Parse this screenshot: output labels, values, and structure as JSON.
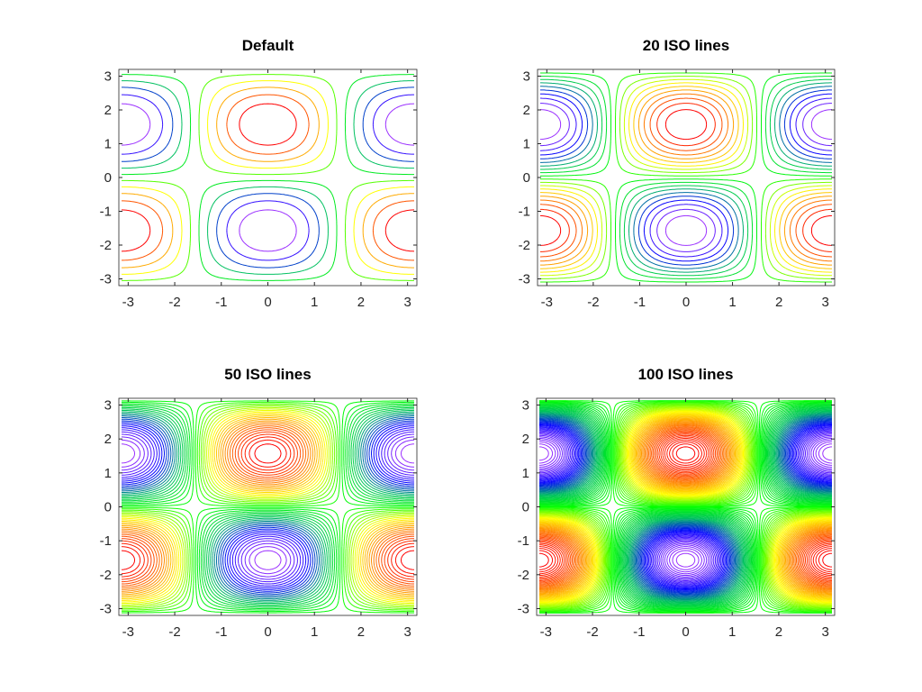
{
  "chart_data": [
    {
      "type": "contour",
      "title": "Default",
      "function": "z = cos(x) * sin(y)",
      "levels": 10,
      "xlim": [
        -3.2,
        3.2
      ],
      "ylim": [
        -3.2,
        3.2
      ],
      "xticks": [
        "-3",
        "-2",
        "-1",
        "0",
        "1",
        "2",
        "3"
      ],
      "yticks": [
        "3",
        "2",
        "1",
        "0",
        "-1",
        "-2",
        "-3"
      ],
      "colormap": [
        "#9b30ff",
        "#0000ff",
        "#00c060",
        "#00ff00",
        "#ffff00",
        "#ff8000",
        "#ff0000"
      ],
      "grid": false
    },
    {
      "type": "contour",
      "title": "20 ISO lines",
      "function": "z = cos(x) * sin(y)",
      "levels": 20,
      "xlim": [
        -3.2,
        3.2
      ],
      "ylim": [
        -3.2,
        3.2
      ],
      "xticks": [
        "-3",
        "-2",
        "-1",
        "0",
        "1",
        "2",
        "3"
      ],
      "yticks": [
        "3",
        "2",
        "1",
        "0",
        "-1",
        "-2",
        "-3"
      ],
      "colormap": [
        "#9b30ff",
        "#0000ff",
        "#00c060",
        "#00ff00",
        "#ffff00",
        "#ff8000",
        "#ff0000"
      ],
      "grid": false
    },
    {
      "type": "contour",
      "title": "50 ISO lines",
      "function": "z = cos(x) * sin(y)",
      "levels": 50,
      "xlim": [
        -3.2,
        3.2
      ],
      "ylim": [
        -3.2,
        3.2
      ],
      "xticks": [
        "-3",
        "-2",
        "-1",
        "0",
        "1",
        "2",
        "3"
      ],
      "yticks": [
        "3",
        "2",
        "1",
        "0",
        "-1",
        "-2",
        "-3"
      ],
      "colormap": [
        "#9b30ff",
        "#0000ff",
        "#00c060",
        "#00ff00",
        "#ffff00",
        "#ff8000",
        "#ff0000"
      ],
      "grid": false
    },
    {
      "type": "contour",
      "title": "100 ISO lines",
      "function": "z = cos(x) * sin(y)",
      "levels": 100,
      "xlim": [
        -3.2,
        3.2
      ],
      "ylim": [
        -3.2,
        3.2
      ],
      "xticks": [
        "-3",
        "-2",
        "-1",
        "0",
        "1",
        "2",
        "3"
      ],
      "yticks": [
        "3",
        "2",
        "1",
        "0",
        "-1",
        "-2",
        "-3"
      ],
      "colormap": [
        "#9b30ff",
        "#0000ff",
        "#00c060",
        "#00ff00",
        "#ffff00",
        "#ff8000",
        "#ff0000"
      ],
      "grid": false
    }
  ]
}
